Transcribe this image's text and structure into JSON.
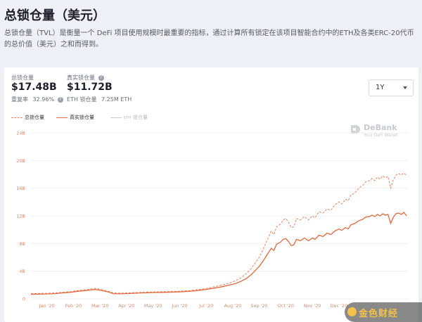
{
  "page": {
    "title": "总锁仓量（美元）",
    "description": "总锁仓量（TVL）是衡量一个 DeFi 项目使用规模时最重要的指标，通过计算所有锁定在该项目智能合约中的ETH及各类ERC-20代币的总价值（美元）之和而得到。"
  },
  "stats": {
    "tvl_label": "总锁仓量",
    "tvl_value": "$17.48B",
    "reuse_label": "重复率",
    "reuse_value": "32.96%",
    "real_label": "真实锁仓量",
    "real_value": "$11.72B",
    "eth_label": "ETH 锁仓量",
    "eth_value": "7.25M ETH"
  },
  "controls": {
    "period": "1Y"
  },
  "legend": {
    "tvl": "总锁仓量",
    "real": "真实锁仓量",
    "eth_prefix": "ETH",
    "eth": "锁仓量"
  },
  "brand": {
    "name": "DeBank",
    "tagline": "Your DeFi Wallet"
  },
  "watermark": "金色财经",
  "colors": {
    "tvl": "#e8845f",
    "real": "#e06a3f",
    "eth": "#c8c8c8",
    "grid": "#eeeeee",
    "tick": "#d48a6a"
  },
  "chart_data": {
    "type": "line",
    "x_tick_labels": [
      "Jan '20",
      "Feb '20",
      "Mar '20",
      "Apr '20",
      "May '20",
      "Jun '20",
      "Jul '20",
      "Aug '20",
      "Sep '20",
      "Oct '20",
      "Nov '20",
      "Dec '20"
    ],
    "y_tick_labels": [
      "0",
      "4B",
      "8B",
      "12B",
      "16B",
      "20B",
      "24B"
    ],
    "ylim": [
      0,
      24
    ],
    "x_unit": "months since Jan 1 2020",
    "y_unit": "billion USD",
    "series": [
      {
        "name": "总锁仓量",
        "style": "dashed",
        "points": [
          [
            -0.6,
            0.75
          ],
          [
            -0.3,
            0.78
          ],
          [
            0,
            0.8
          ],
          [
            0.3,
            0.85
          ],
          [
            0.6,
            0.95
          ],
          [
            0.9,
            1.05
          ],
          [
            1.2,
            1.2
          ],
          [
            1.5,
            1.35
          ],
          [
            1.8,
            1.5
          ],
          [
            2.0,
            1.4
          ],
          [
            2.2,
            1.2
          ],
          [
            2.35,
            1.05
          ],
          [
            2.5,
            0.85
          ],
          [
            2.7,
            0.82
          ],
          [
            3.0,
            0.85
          ],
          [
            3.3,
            0.9
          ],
          [
            3.6,
            0.95
          ],
          [
            4.0,
            1.0
          ],
          [
            4.5,
            1.05
          ],
          [
            5.0,
            1.1
          ],
          [
            5.4,
            1.2
          ],
          [
            5.7,
            1.35
          ],
          [
            6.0,
            1.5
          ],
          [
            6.3,
            1.75
          ],
          [
            6.6,
            2.0
          ],
          [
            6.9,
            2.3
          ],
          [
            7.1,
            2.6
          ],
          [
            7.3,
            3.0
          ],
          [
            7.5,
            3.6
          ],
          [
            7.7,
            4.4
          ],
          [
            7.85,
            5.2
          ],
          [
            8.0,
            6.0
          ],
          [
            8.15,
            7.2
          ],
          [
            8.3,
            8.5
          ],
          [
            8.45,
            9.8
          ],
          [
            8.55,
            9.3
          ],
          [
            8.65,
            10.4
          ],
          [
            8.8,
            10.8
          ],
          [
            8.9,
            11.4
          ],
          [
            9.0,
            11.6
          ],
          [
            9.1,
            11.1
          ],
          [
            9.2,
            10.3
          ],
          [
            9.3,
            10.4
          ],
          [
            9.4,
            11.6
          ],
          [
            9.55,
            11.4
          ],
          [
            9.7,
            11.9
          ],
          [
            9.85,
            11.4
          ],
          [
            10.0,
            12.0
          ],
          [
            10.1,
            11.7
          ],
          [
            10.25,
            12.6
          ],
          [
            10.4,
            12.4
          ],
          [
            10.55,
            13.0
          ],
          [
            10.7,
            12.8
          ],
          [
            10.85,
            13.6
          ],
          [
            11.0,
            14.0
          ],
          [
            11.1,
            13.7
          ],
          [
            11.25,
            14.4
          ],
          [
            11.35,
            14.2
          ],
          [
            11.45,
            15.0
          ],
          [
            11.6,
            15.3
          ],
          [
            11.75,
            16.0
          ],
          [
            11.9,
            16.4
          ],
          [
            12.0,
            16.9
          ],
          [
            12.15,
            17.1
          ],
          [
            12.25,
            17.4
          ],
          [
            12.35,
            17.1
          ],
          [
            12.45,
            17.6
          ],
          [
            12.55,
            17.3
          ],
          [
            12.65,
            17.8
          ],
          [
            12.75,
            17.5
          ],
          [
            12.85,
            17.7
          ],
          [
            12.95,
            16.0
          ],
          [
            13.05,
            17.2
          ],
          [
            13.15,
            17.9
          ],
          [
            13.25,
            18.1
          ],
          [
            13.35,
            17.9
          ],
          [
            13.45,
            18.2
          ],
          [
            13.55,
            17.8
          ]
        ]
      },
      {
        "name": "真实锁仓量",
        "style": "solid",
        "points": [
          [
            -0.6,
            0.65
          ],
          [
            -0.3,
            0.68
          ],
          [
            0,
            0.7
          ],
          [
            0.3,
            0.75
          ],
          [
            0.6,
            0.85
          ],
          [
            0.9,
            0.95
          ],
          [
            1.2,
            1.1
          ],
          [
            1.5,
            1.2
          ],
          [
            1.8,
            1.35
          ],
          [
            2.0,
            1.25
          ],
          [
            2.2,
            1.1
          ],
          [
            2.35,
            0.95
          ],
          [
            2.5,
            0.75
          ],
          [
            2.7,
            0.72
          ],
          [
            3.0,
            0.75
          ],
          [
            3.3,
            0.8
          ],
          [
            3.6,
            0.85
          ],
          [
            4.0,
            0.9
          ],
          [
            4.5,
            0.95
          ],
          [
            5.0,
            1.0
          ],
          [
            5.4,
            1.1
          ],
          [
            5.7,
            1.2
          ],
          [
            6.0,
            1.35
          ],
          [
            6.3,
            1.55
          ],
          [
            6.6,
            1.75
          ],
          [
            6.9,
            2.0
          ],
          [
            7.1,
            2.2
          ],
          [
            7.3,
            2.5
          ],
          [
            7.5,
            2.9
          ],
          [
            7.7,
            3.5
          ],
          [
            7.85,
            4.1
          ],
          [
            8.0,
            4.7
          ],
          [
            8.15,
            5.5
          ],
          [
            8.3,
            6.4
          ],
          [
            8.45,
            7.3
          ],
          [
            8.55,
            7.0
          ],
          [
            8.65,
            7.9
          ],
          [
            8.8,
            8.2
          ],
          [
            8.9,
            8.6
          ],
          [
            9.0,
            8.7
          ],
          [
            9.1,
            8.3
          ],
          [
            9.2,
            7.7
          ],
          [
            9.3,
            7.8
          ],
          [
            9.4,
            8.6
          ],
          [
            9.55,
            8.4
          ],
          [
            9.7,
            8.8
          ],
          [
            9.85,
            8.4
          ],
          [
            10.0,
            8.8
          ],
          [
            10.1,
            8.6
          ],
          [
            10.25,
            9.2
          ],
          [
            10.4,
            9.0
          ],
          [
            10.55,
            9.5
          ],
          [
            10.7,
            9.3
          ],
          [
            10.85,
            9.8
          ],
          [
            11.0,
            10.1
          ],
          [
            11.1,
            9.9
          ],
          [
            11.25,
            10.3
          ],
          [
            11.35,
            10.1
          ],
          [
            11.45,
            10.7
          ],
          [
            11.6,
            10.9
          ],
          [
            11.75,
            11.3
          ],
          [
            11.9,
            11.5
          ],
          [
            12.0,
            11.8
          ],
          [
            12.15,
            11.9
          ],
          [
            12.25,
            12.1
          ],
          [
            12.35,
            11.9
          ],
          [
            12.45,
            12.2
          ],
          [
            12.55,
            12.0
          ],
          [
            12.65,
            12.3
          ],
          [
            12.75,
            12.1
          ],
          [
            12.85,
            12.2
          ],
          [
            12.95,
            10.9
          ],
          [
            13.05,
            11.8
          ],
          [
            13.15,
            12.3
          ],
          [
            13.25,
            12.4
          ],
          [
            13.35,
            12.2
          ],
          [
            13.45,
            12.5
          ],
          [
            13.55,
            12.0
          ]
        ]
      }
    ]
  }
}
